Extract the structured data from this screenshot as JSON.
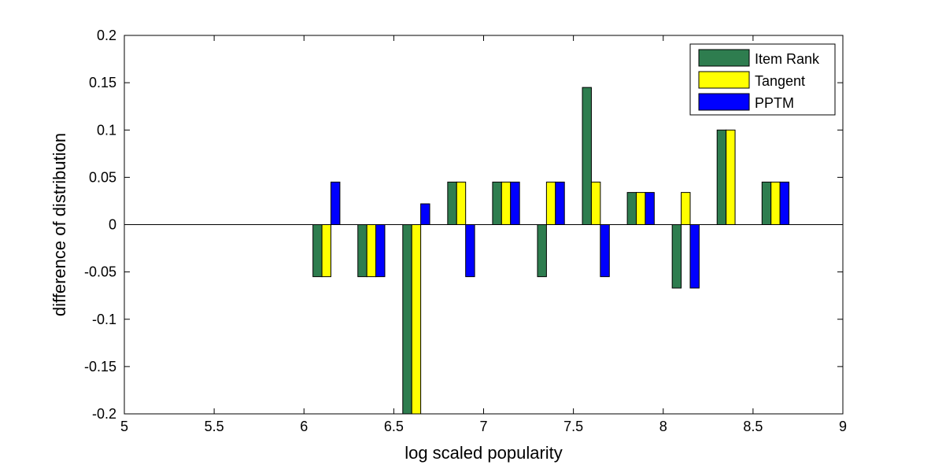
{
  "chart_data": {
    "type": "bar",
    "title": "",
    "xlabel": "log scaled popularity",
    "ylabel": "difference of distribution",
    "xlim": [
      5,
      9
    ],
    "ylim": [
      -0.2,
      0.2
    ],
    "xticks": [
      "5",
      "5.5",
      "6",
      "6.5",
      "7",
      "7.5",
      "8",
      "8.5",
      "9"
    ],
    "xtick_values": [
      5,
      5.5,
      6,
      6.5,
      7,
      7.5,
      8,
      8.5,
      9
    ],
    "yticks": [
      "-0.2",
      "-0.15",
      "-0.1",
      "-0.05",
      "0",
      "0.05",
      "0.1",
      "0.15",
      "0.2"
    ],
    "ytick_values": [
      -0.2,
      -0.15,
      -0.1,
      -0.05,
      0,
      0.05,
      0.1,
      0.15,
      0.2
    ],
    "grid": false,
    "legend_position": "top-right",
    "x": [
      6.125,
      6.375,
      6.625,
      6.875,
      7.125,
      7.375,
      7.625,
      7.875,
      8.125,
      8.375,
      8.625
    ],
    "series": [
      {
        "name": "Item Rank",
        "color": "#2e7d4f",
        "values": [
          -0.055,
          -0.055,
          -0.2,
          0.045,
          0.045,
          -0.055,
          0.145,
          0.034,
          -0.067,
          0.1,
          0.045
        ]
      },
      {
        "name": "Tangent",
        "color": "#ffff00",
        "values": [
          -0.055,
          -0.055,
          -0.2,
          0.045,
          0.045,
          0.045,
          0.045,
          0.034,
          0.034,
          0.1,
          0.045
        ]
      },
      {
        "name": "PPTM",
        "color": "#0000ff",
        "values": [
          0.045,
          -0.055,
          0.022,
          -0.055,
          0.045,
          0.045,
          -0.055,
          0.034,
          -0.067,
          0,
          0.045
        ]
      }
    ]
  }
}
